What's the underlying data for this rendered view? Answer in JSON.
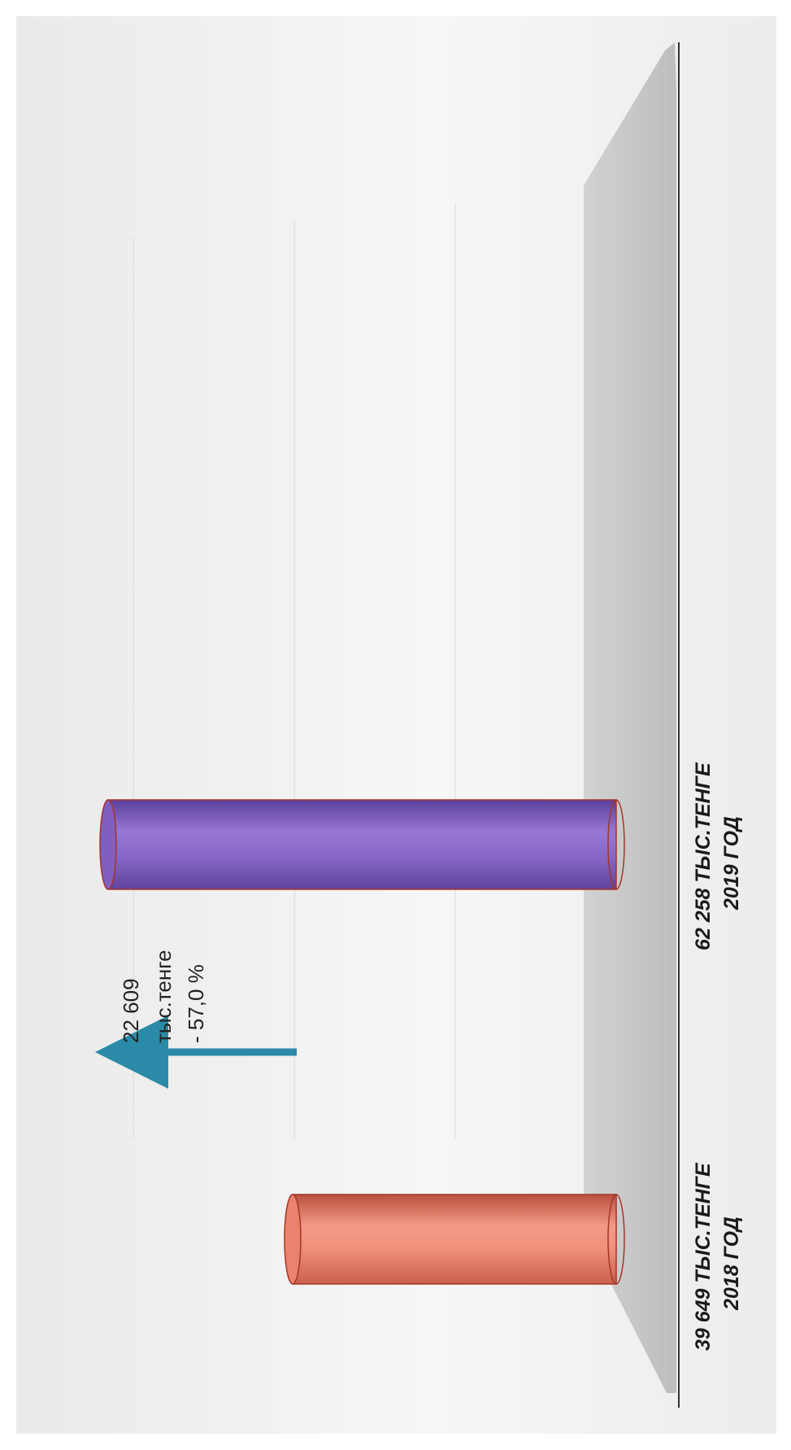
{
  "chart_data": {
    "type": "bar",
    "style": "3d-cylinder",
    "orientation": "horizontal",
    "image_rotation": "rotated 90° counter-clockwise (reads with page turned)",
    "grid": true,
    "categories": [
      "2018 ГОД",
      "2019 ГОД"
    ],
    "category_value_labels": [
      "39 649 ТЫС.ТЕНГЕ",
      "62 258 ТЫС.ТЕНГЕ"
    ],
    "values": [
      39649,
      62258
    ],
    "unit": "тыс. тенге",
    "colors": [
      "#e9836d",
      "#7f5fbf"
    ],
    "annotation": {
      "lines": [
        "22 609",
        "тыс.тенге",
        "- 57,0 %"
      ],
      "arrow_color": "#2a8aa8"
    },
    "title": "",
    "xlabel": "",
    "ylabel": ""
  }
}
